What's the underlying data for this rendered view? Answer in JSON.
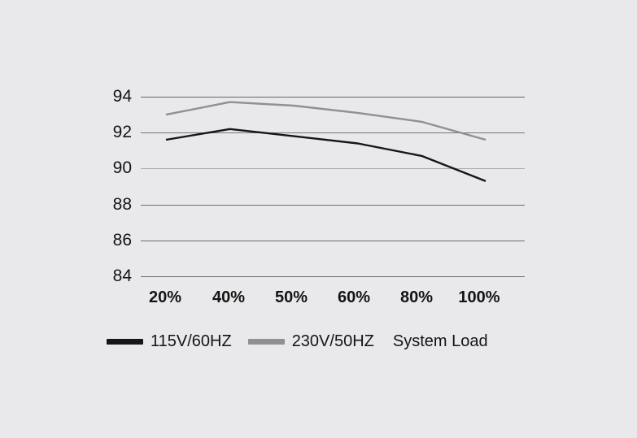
{
  "canvas": {
    "background_color": "#e9e9eb",
    "text_color": "#141414"
  },
  "chart_data": {
    "type": "line",
    "x_axis_label": "System Load",
    "categories": [
      "20%",
      "40%",
      "50%",
      "60%",
      "80%",
      "100%"
    ],
    "series": [
      {
        "name": "115V/60HZ",
        "color": "#161616",
        "values": [
          91.6,
          92.2,
          91.8,
          91.4,
          90.7,
          89.3
        ]
      },
      {
        "name": "230V/50HZ",
        "color": "#8e9092",
        "values": [
          93.0,
          93.7,
          93.5,
          93.1,
          92.6,
          91.6
        ]
      }
    ],
    "y_ticks": [
      "94",
      "92",
      "90",
      "88",
      "86",
      "84"
    ],
    "ylim": [
      84,
      94
    ],
    "grid": "horizontal",
    "gridline_colors": [
      "#646669",
      "#737578",
      "#a9abae",
      "#6a6c6f",
      "#6a6c6f",
      "#6a6c6f"
    ],
    "legend_position": "bottom"
  }
}
